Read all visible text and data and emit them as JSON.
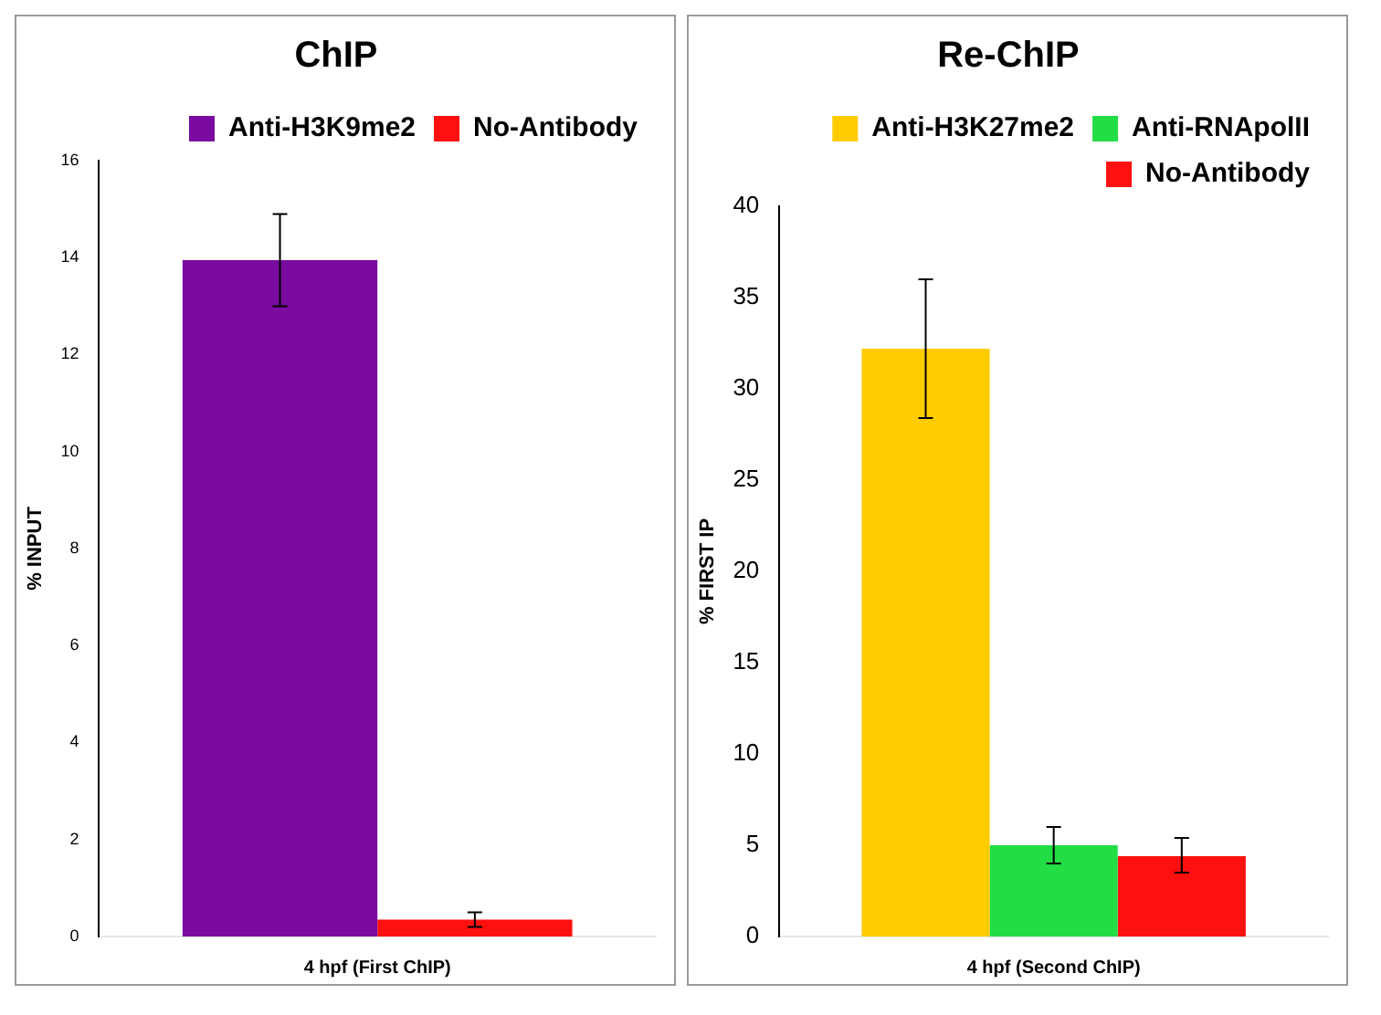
{
  "chart_data": [
    {
      "type": "bar",
      "title": "ChIP",
      "ylabel": "% INPUT",
      "categories": [
        "4 hpf (First ChIP)"
      ],
      "ylim": [
        0,
        16
      ],
      "yticks": [
        0,
        2,
        4,
        6,
        8,
        10,
        12,
        14,
        16
      ],
      "grid": false,
      "legend": "top right",
      "series": [
        {
          "name": "Anti-H3K9me2",
          "color": "#7a0aa0",
          "values": [
            13.95
          ],
          "errors": [
            0.95
          ]
        },
        {
          "name": "No-Antibody",
          "color": "#ff1010",
          "values": [
            0.35
          ],
          "errors": [
            0.15
          ]
        }
      ]
    },
    {
      "type": "bar",
      "title": "Re-ChIP",
      "ylabel": "% FIRST IP",
      "categories": [
        "4 hpf (Second ChIP)"
      ],
      "ylim": [
        0,
        40
      ],
      "yticks": [
        0,
        5,
        10,
        15,
        20,
        25,
        30,
        35,
        40
      ],
      "grid": false,
      "legend": "top right",
      "series": [
        {
          "name": "Anti-H3K27me2",
          "color": "#ffcc00",
          "values": [
            32.2
          ],
          "errors": [
            [
              28.4,
              36
            ]
          ]
        },
        {
          "name": "Anti-RNApolII",
          "color": "#22dd44",
          "values": [
            5
          ],
          "errors": [
            [
              4,
              6
            ]
          ]
        },
        {
          "name": "No-Antibody",
          "color": "#ff1010",
          "values": [
            4.4
          ],
          "errors": [
            [
              3.5,
              5.4
            ]
          ]
        }
      ]
    }
  ]
}
